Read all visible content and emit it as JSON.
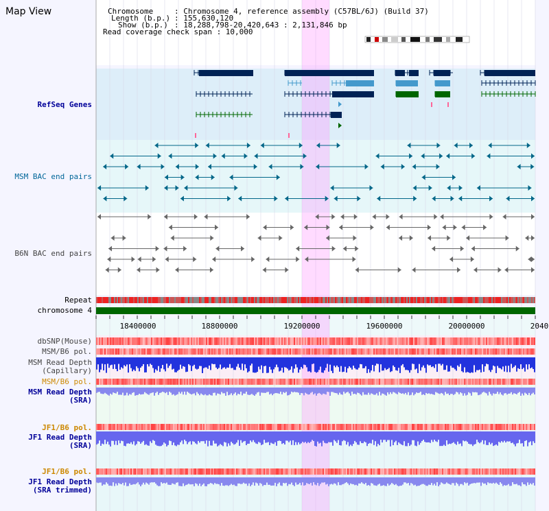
{
  "page": {
    "title": "Map View"
  },
  "info": {
    "chromosome_key": "Chromosome",
    "chromosome_val": ": Chromosome 4, reference assembly (C57BL/6J) (Build 37)",
    "length_key": "Length (b.p.)",
    "length_val": ": 155,630,120",
    "show_key": "Show (b.p.)",
    "show_val": ": 18,288,798-20,420,643 : 2,131,846 bp",
    "coverage": "Read coverage check span : 10,000"
  },
  "tracks": {
    "refseq": "RefSeq Genes",
    "msm_bac": "MSM BAC end pairs",
    "b6n_bac": "B6N BAC end pairs",
    "repeat": "Repeat",
    "chromosome": "chromosome 4",
    "dbsnp": "dbSNP(Mouse)",
    "msm_b6_pol_1": "MSM/B6 pol.",
    "msm_read_depth_cap_1": "MSM Read Depth",
    "msm_read_depth_cap_2": "(Capillary)",
    "msm_b6_pol_2": "MSM/B6 pol.",
    "msm_read_depth_sra_1": "MSM Read Depth",
    "msm_read_depth_sra_2": "(SRA)",
    "jf1_b6_pol_1": "JF1/B6 pol.",
    "jf1_read_depth_sra_1": "JF1 Read Depth",
    "jf1_read_depth_sra_2": "(SRA)",
    "jf1_b6_pol_2": "JF1/B6 pol.",
    "jf1_read_depth_trim_1": "JF1 Read Depth",
    "jf1_read_depth_trim_2": "(SRA trimmed)"
  },
  "axis": {
    "ticks": [
      "18400000",
      "18800000",
      "19200000",
      "19600000",
      "20000000",
      "2040"
    ]
  },
  "colors": {
    "navy_label": "#000099",
    "teal_label": "#006699",
    "gray_label": "#444444",
    "orange_label": "#cc8800",
    "gene_dark": "#002255",
    "gene_light": "#4499cc",
    "gene_green": "#006600",
    "bac_teal": "#006688",
    "bac_gray": "#666666",
    "highlight": "#ff99ff"
  }
}
